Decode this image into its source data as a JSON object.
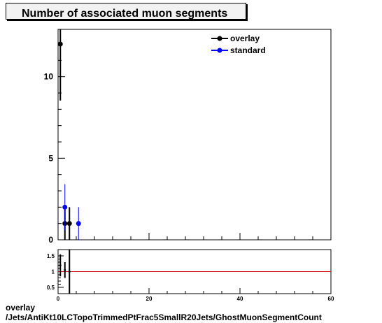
{
  "title": "Number of associated muon segments",
  "footer": {
    "line1": "overlay",
    "line2": "/Jets/AntiKt10LCTopoTrimmedPtFrac5SmallR20Jets/GhostMuonSegmentCount"
  },
  "colors": {
    "overlay": "#000000",
    "standard": "#0000ff",
    "ratio_line": "#cc0000"
  },
  "chart_data": [
    {
      "type": "scatter",
      "title": "Number of associated muon segments",
      "xlim": [
        0,
        60
      ],
      "ylim": [
        0,
        12.9
      ],
      "y_ticks_labeled": [
        0,
        5,
        10
      ],
      "legend_position": "top-right",
      "grid": false,
      "series": [
        {
          "name": "overlay",
          "color": "#000000",
          "points": [
            {
              "x": 0.5,
              "y": 12,
              "err": 3.46
            },
            {
              "x": 1.5,
              "y": 1,
              "err": 1
            },
            {
              "x": 2.5,
              "y": 1,
              "err": 1
            }
          ]
        },
        {
          "name": "standard",
          "color": "#0000ff",
          "points": [
            {
              "x": 1.5,
              "y": 2,
              "err": 1.41
            },
            {
              "x": 4.5,
              "y": 1,
              "err": 1
            }
          ]
        }
      ]
    },
    {
      "type": "scatter",
      "title": "",
      "xlabel": "",
      "xlim": [
        0,
        60
      ],
      "ylim": [
        0.3,
        1.7
      ],
      "x_ticks_labeled": [
        0,
        20,
        40,
        60
      ],
      "y_ticks_labeled": [
        0.5,
        1,
        1.5
      ],
      "reference_line": 1,
      "points": [
        {
          "x": 0.5,
          "y": 1.2,
          "err": 0.35
        },
        {
          "x": 1.5,
          "y": 1.05,
          "err": 0.25
        },
        {
          "x": 2.5,
          "y": 1,
          "err": 1.3
        }
      ]
    }
  ]
}
